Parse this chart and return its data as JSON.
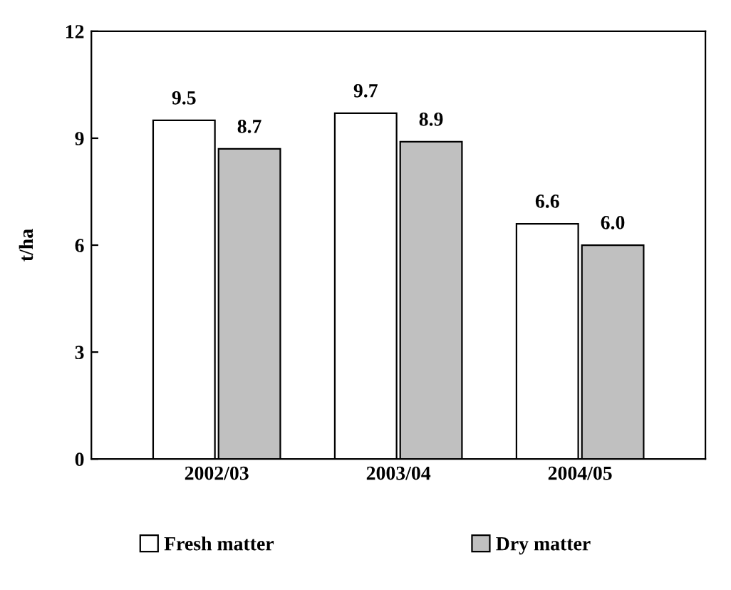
{
  "chart_data": {
    "type": "bar",
    "ylabel": "t/ha",
    "categories": [
      "2002/03",
      "2003/04",
      "2004/05"
    ],
    "series": [
      {
        "name": "Fresh matter",
        "color": "#ffffff",
        "values": [
          9.5,
          9.7,
          6.6
        ],
        "value_labels": [
          "9.5",
          "9.7",
          "6.6"
        ]
      },
      {
        "name": "Dry matter",
        "color": "#c0c0c0",
        "values": [
          8.7,
          8.9,
          6.0
        ],
        "value_labels": [
          "8.7",
          "8.9",
          "6.0"
        ]
      }
    ],
    "ylim": [
      0,
      12
    ],
    "yticks": [
      0,
      3,
      6,
      9,
      12
    ],
    "grid": false,
    "legend": "bottom"
  }
}
